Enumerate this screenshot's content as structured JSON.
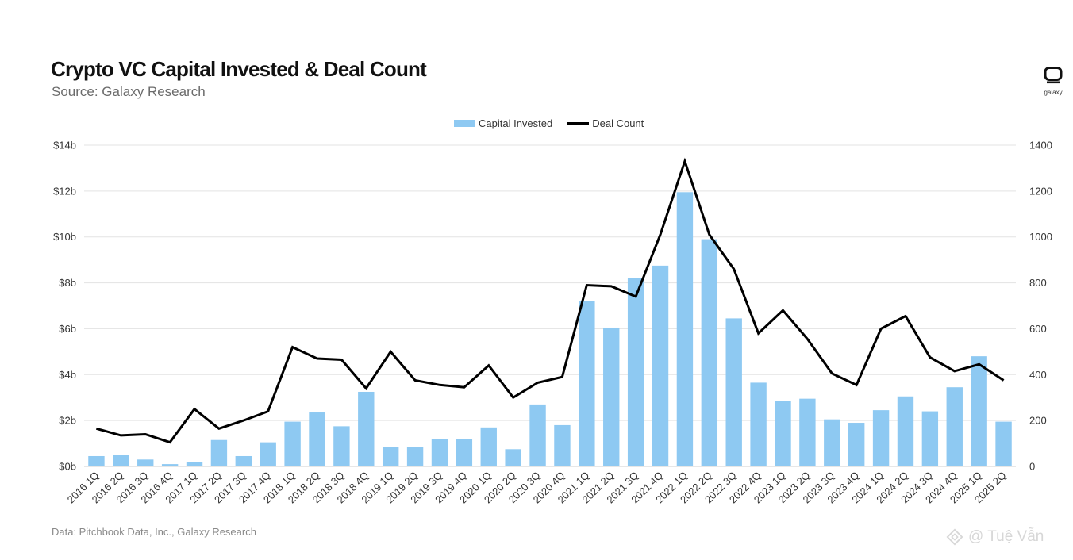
{
  "header": {
    "title": "Crypto VC Capital Invested & Deal Count",
    "subtitle": "Source: Galaxy Research"
  },
  "logo": {
    "text": "galaxy",
    "icon": "galaxy-logo-icon"
  },
  "legend": {
    "bar_label": "Capital Invested",
    "line_label": "Deal Count"
  },
  "footer": {
    "source": "Data: Pitchbook Data, Inc., Galaxy Research"
  },
  "watermark": {
    "text": "@ Tuệ Vẫn",
    "icon": "binance-square-icon"
  },
  "colors": {
    "bar": "#8ec9f2",
    "line": "#000000",
    "grid": "#e3e3e3"
  },
  "chart_data": {
    "type": "bar",
    "title": "Crypto VC Capital Invested & Deal Count",
    "categories": [
      "2016 1Q",
      "2016 2Q",
      "2016 3Q",
      "2016 4Q",
      "2017 1Q",
      "2017 2Q",
      "2017 3Q",
      "2017 4Q",
      "2018 1Q",
      "2018 2Q",
      "2018 3Q",
      "2018 4Q",
      "2019 1Q",
      "2019 2Q",
      "2019 3Q",
      "2019 4Q",
      "2020 1Q",
      "2020 2Q",
      "2020 3Q",
      "2020 4Q",
      "2021 1Q",
      "2021 2Q",
      "2021 3Q",
      "2021 4Q",
      "2022 1Q",
      "2022 2Q",
      "2022 3Q",
      "2022 4Q",
      "2023 1Q",
      "2023 2Q",
      "2023 3Q",
      "2023 4Q",
      "2024 1Q",
      "2024 2Q",
      "2024 3Q",
      "2024 4Q",
      "2025 1Q",
      "2025 2Q"
    ],
    "series": [
      {
        "name": "Capital Invested",
        "type": "bar",
        "axis": "left",
        "values": [
          0.45,
          0.5,
          0.3,
          0.1,
          0.2,
          1.15,
          0.45,
          1.05,
          1.95,
          2.35,
          1.75,
          3.25,
          0.85,
          0.85,
          1.2,
          1.2,
          1.7,
          0.75,
          2.7,
          1.8,
          7.2,
          6.05,
          8.2,
          8.75,
          11.95,
          9.9,
          6.45,
          3.65,
          2.85,
          2.95,
          2.05,
          1.9,
          2.45,
          3.05,
          2.4,
          3.45,
          4.8,
          1.95
        ]
      },
      {
        "name": "Deal Count",
        "type": "line",
        "axis": "right",
        "values": [
          165,
          135,
          140,
          105,
          250,
          165,
          200,
          240,
          520,
          470,
          465,
          340,
          500,
          375,
          355,
          345,
          440,
          300,
          365,
          390,
          790,
          785,
          740,
          1010,
          1330,
          1010,
          860,
          580,
          680,
          555,
          405,
          355,
          600,
          655,
          475,
          415,
          445,
          375
        ]
      }
    ],
    "y_left": {
      "min": 0,
      "max": 14,
      "ticks": [
        "$0b",
        "$2b",
        "$4b",
        "$6b",
        "$8b",
        "$10b",
        "$12b",
        "$14b"
      ]
    },
    "y_right": {
      "min": 0,
      "max": 1400,
      "ticks": [
        "0",
        "200",
        "400",
        "600",
        "800",
        "1000",
        "1200",
        "1400"
      ]
    },
    "grid": true,
    "legend_position": "top-center"
  }
}
